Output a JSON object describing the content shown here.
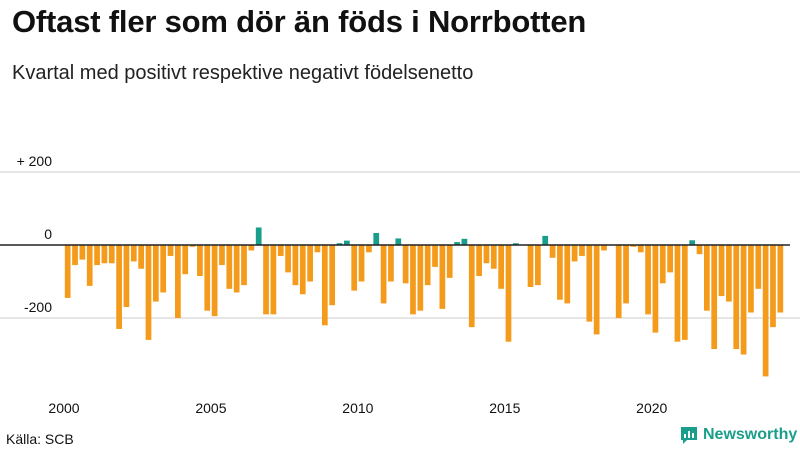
{
  "title": "Oftast fler som dör än föds i Norrbotten",
  "subtitle": "Kvartal med positivt respektive negativt födelsenetto",
  "source": "Källa: SCB",
  "brand": "Newsworthy",
  "colors": {
    "negative": "#f59b1c",
    "positive": "#1a9e8c",
    "gridline": "#cccccc",
    "zeroline": "#222222"
  },
  "chart_data": {
    "type": "bar",
    "title": "Oftast fler som dör än föds i Norrbotten",
    "subtitle": "Kvartal med positivt respektive negativt födelsenetto",
    "xlabel": "",
    "ylabel": "",
    "ylim": [
      -370,
      230
    ],
    "yticks": [
      200,
      0,
      -200
    ],
    "ytick_labels": [
      "+ 200",
      "0",
      "-200"
    ],
    "xticks": [
      2000,
      2005,
      2010,
      2015,
      2020
    ],
    "xtick_labels": [
      "2000",
      "2005",
      "2010",
      "2015",
      "2020"
    ],
    "x_start": 2000,
    "per_year": 4,
    "values": [
      -145,
      -55,
      -40,
      -112,
      -55,
      -50,
      -50,
      -230,
      -170,
      -45,
      -65,
      -260,
      -155,
      -130,
      -30,
      -200,
      -80,
      -5,
      -85,
      -180,
      -195,
      -55,
      -120,
      -130,
      -110,
      -15,
      48,
      -190,
      -190,
      -30,
      -75,
      -110,
      -135,
      -100,
      -20,
      -220,
      -165,
      5,
      12,
      -125,
      -100,
      -20,
      33,
      -160,
      -100,
      18,
      -105,
      -190,
      -180,
      -110,
      -60,
      -175,
      -90,
      8,
      17,
      -225,
      -85,
      -50,
      -65,
      -120,
      -265,
      5,
      0,
      -115,
      -110,
      25,
      -35,
      -150,
      -160,
      -45,
      -30,
      -210,
      -245,
      -15,
      0,
      -200,
      -160,
      -5,
      -20,
      -190,
      -240,
      -105,
      -75,
      -265,
      -260,
      13,
      -25,
      -180,
      -285,
      -140,
      -155,
      -285,
      -300,
      -185,
      -120,
      -360,
      -225,
      -185
    ]
  }
}
